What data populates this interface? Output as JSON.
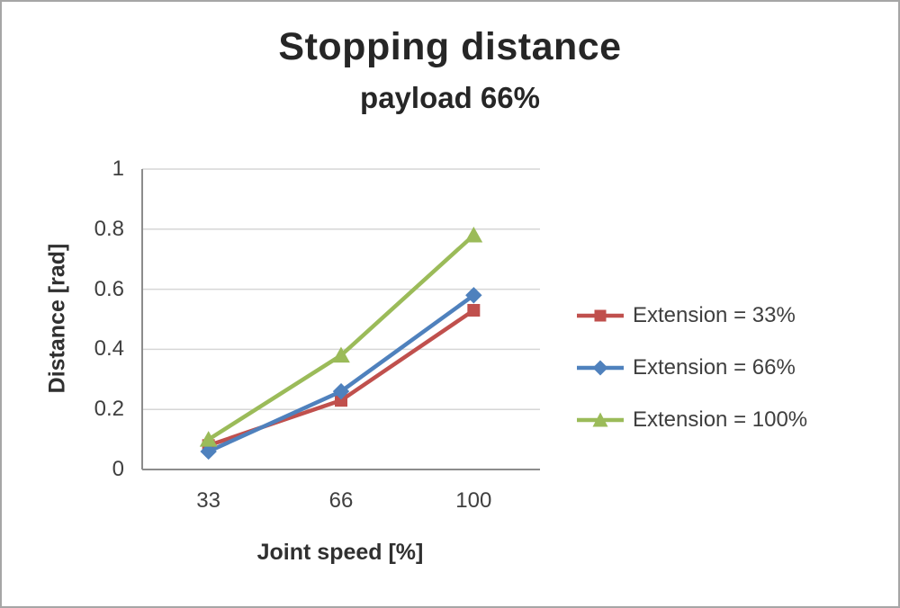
{
  "chart_data": {
    "type": "line",
    "title": "Stopping distance",
    "subtitle": "payload 66%",
    "xlabel": "Joint speed [%]",
    "ylabel": "Distance [rad]",
    "categories": [
      "33",
      "66",
      "100"
    ],
    "ylim": [
      0,
      1
    ],
    "yticks": [
      0,
      0.2,
      0.4,
      0.6,
      0.8,
      1
    ],
    "ytick_labels": [
      "0",
      "0.2",
      "0.4",
      "0.6",
      "0.8",
      "1"
    ],
    "grid": true,
    "legend_position": "right",
    "colors": {
      "grid": "#d6d6d6",
      "axis": "#8c8c8c",
      "text": "#3f3f3f"
    },
    "series": [
      {
        "name": "Extension = 33%",
        "color": "#c0504d",
        "marker": "square",
        "values": [
          0.08,
          0.23,
          0.53
        ]
      },
      {
        "name": "Extension = 66%",
        "color": "#4f81bd",
        "marker": "diamond",
        "values": [
          0.06,
          0.26,
          0.58
        ]
      },
      {
        "name": "Extension = 100%",
        "color": "#9bbb59",
        "marker": "triangle",
        "values": [
          0.1,
          0.38,
          0.78
        ]
      }
    ]
  }
}
